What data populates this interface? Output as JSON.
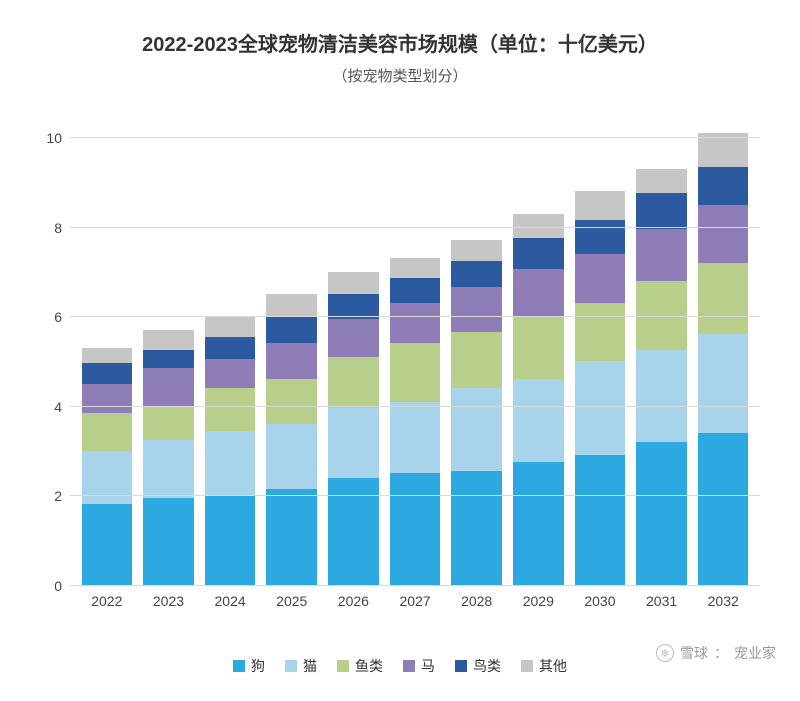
{
  "chart": {
    "type": "stacked-bar",
    "title": "2022-2023全球宠物清洁美容市场规模（单位：十亿美元）",
    "title_fontsize": 20,
    "subtitle": "（按宠物类型划分）",
    "subtitle_fontsize": 15,
    "background_color": "#ffffff",
    "grid_color": "#d9d9d9",
    "axis_label_color": "#444444",
    "axis_label_fontsize": 14,
    "ylim": [
      0,
      10.5
    ],
    "ytick_step": 2,
    "yticks": [
      0,
      2,
      4,
      6,
      8,
      10
    ],
    "bar_width": 0.82,
    "categories": [
      "2022",
      "2023",
      "2024",
      "2025",
      "2026",
      "2027",
      "2028",
      "2029",
      "2030",
      "2031",
      "2032"
    ],
    "series": [
      {
        "key": "dog",
        "label": "狗",
        "color": "#2ca9e1"
      },
      {
        "key": "cat",
        "label": "猫",
        "color": "#a7d4ea"
      },
      {
        "key": "fish",
        "label": "鱼类",
        "color": "#b8cf8c"
      },
      {
        "key": "horse",
        "label": "马",
        "color": "#8f7db8"
      },
      {
        "key": "bird",
        "label": "鸟类",
        "color": "#2c5aa0"
      },
      {
        "key": "other",
        "label": "其他",
        "color": "#c6c6c6"
      }
    ],
    "data": {
      "dog": [
        1.8,
        1.95,
        2.0,
        2.15,
        2.4,
        2.5,
        2.55,
        2.75,
        2.9,
        3.2,
        3.4
      ],
      "cat": [
        1.2,
        1.3,
        1.45,
        1.45,
        1.55,
        1.6,
        1.85,
        1.85,
        2.1,
        2.05,
        2.2
      ],
      "fish": [
        0.85,
        0.75,
        0.95,
        1.0,
        1.15,
        1.3,
        1.25,
        1.4,
        1.3,
        1.55,
        1.6
      ],
      "horse": [
        0.65,
        0.85,
        0.65,
        0.8,
        0.85,
        0.9,
        1.0,
        1.05,
        1.1,
        1.15,
        1.3
      ],
      "bird": [
        0.45,
        0.4,
        0.5,
        0.6,
        0.55,
        0.55,
        0.6,
        0.7,
        0.75,
        0.8,
        0.85
      ],
      "other": [
        0.35,
        0.45,
        0.45,
        0.5,
        0.5,
        0.45,
        0.45,
        0.55,
        0.65,
        0.55,
        0.75
      ]
    },
    "legend_position": "bottom"
  },
  "watermark": {
    "platform": "雪球",
    "source": "宠业家"
  }
}
